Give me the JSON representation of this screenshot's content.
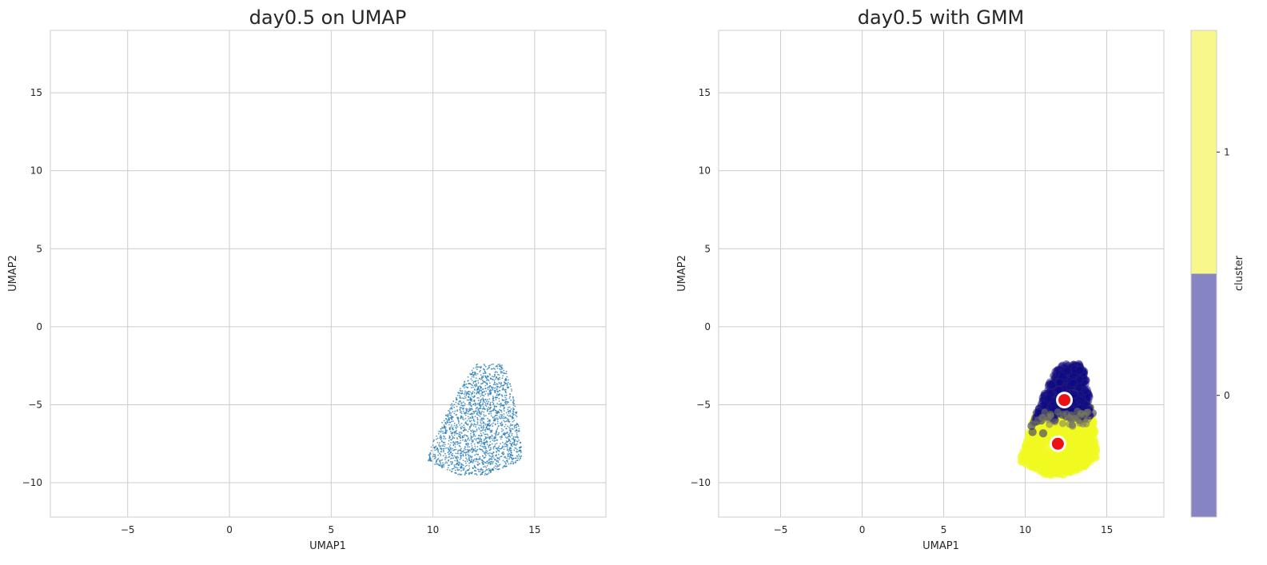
{
  "chart_data": [
    {
      "type": "scatter",
      "title": "day0.5 on UMAP",
      "xlabel": "UMAP1",
      "ylabel": "UMAP2",
      "xlim": [
        -8.8,
        18.5
      ],
      "ylim": [
        -12.2,
        19
      ],
      "xticks": [
        -5,
        0,
        5,
        10,
        15
      ],
      "xtick_labels": [
        "−5",
        "0",
        "5",
        "10",
        "15"
      ],
      "yticks": [
        -10,
        -5,
        0,
        5,
        10,
        15
      ],
      "ytick_labels": [
        "−10",
        "−5",
        "0",
        "5",
        "10",
        "15"
      ],
      "grid": true,
      "point_color": "#1f77b4",
      "series": [
        {
          "description": "scatter cloud of cells",
          "x_range": [
            9.5,
            14.3
          ],
          "y_range": [
            -9.5,
            -2.4
          ],
          "approx_points": 2000
        }
      ]
    },
    {
      "type": "scatter",
      "title": "day0.5 with GMM",
      "xlabel": "UMAP1",
      "ylabel": "UMAP2",
      "xlim": [
        -8.8,
        18.5
      ],
      "ylim": [
        -12.2,
        19
      ],
      "xticks": [
        -5,
        0,
        5,
        10,
        15
      ],
      "xtick_labels": [
        "−5",
        "0",
        "5",
        "10",
        "15"
      ],
      "yticks": [
        -10,
        -5,
        0,
        5,
        10,
        15
      ],
      "ytick_labels": [
        "−10",
        "−5",
        "0",
        "5",
        "10",
        "15"
      ],
      "grid": true,
      "series": [
        {
          "cluster": "0",
          "color": "#0d0887",
          "x_range": [
            10.2,
            14.2
          ],
          "y_range": [
            -6.5,
            -2.4
          ]
        },
        {
          "cluster": "1",
          "color": "#f0f921",
          "x_range": [
            9.5,
            14.3
          ],
          "y_range": [
            -9.5,
            -5.0
          ]
        }
      ],
      "centers": [
        {
          "cluster": "0",
          "x": 12.4,
          "y": -4.7
        },
        {
          "cluster": "1",
          "x": 12.0,
          "y": -7.5
        }
      ],
      "center_color": "#ee1111",
      "colorbar": {
        "label": "cluster",
        "ticks": [
          "0",
          "1"
        ],
        "colors": [
          "#8784c4",
          "#f7f78c"
        ]
      }
    }
  ]
}
